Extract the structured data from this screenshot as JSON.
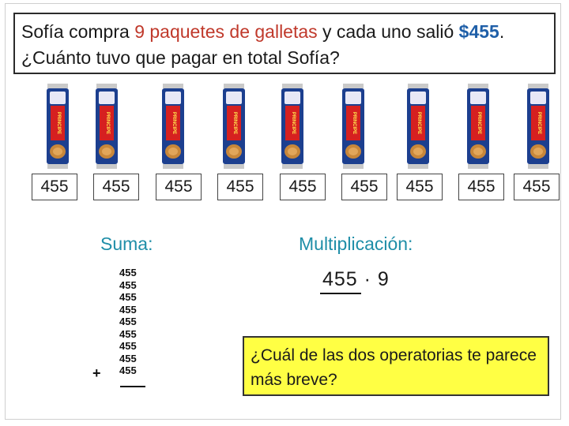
{
  "question": {
    "line1_part1": "Sofía compra ",
    "line1_highlight": "9 paquetes de galletas",
    "line1_part2": " y cada uno salió ",
    "line1_price": "$455",
    "line1_end": ".",
    "line2": "¿Cuánto tuvo que pagar en total Sofía?"
  },
  "packs": {
    "brand_text": "PRINCIPE",
    "count": 9,
    "colors": {
      "wrapper": "#1c3f8f",
      "stripe": "#d62020",
      "cookie": "#c8873a",
      "foil": "#c9c9c9"
    }
  },
  "prices": [
    "455",
    "455",
    "455",
    "455",
    "455",
    "455",
    "455",
    "455",
    "455"
  ],
  "sum": {
    "heading": "Suma:",
    "addends": [
      "455",
      "455",
      "455",
      "455",
      "455",
      "455",
      "455",
      "455",
      "455"
    ],
    "plus_sign": "+"
  },
  "multiplication": {
    "heading": "Multiplicación:",
    "expression": "455 · 9"
  },
  "callout": {
    "text": "¿Cuál de las dos operatorias te parece más breve?",
    "color": "#ffff44"
  }
}
